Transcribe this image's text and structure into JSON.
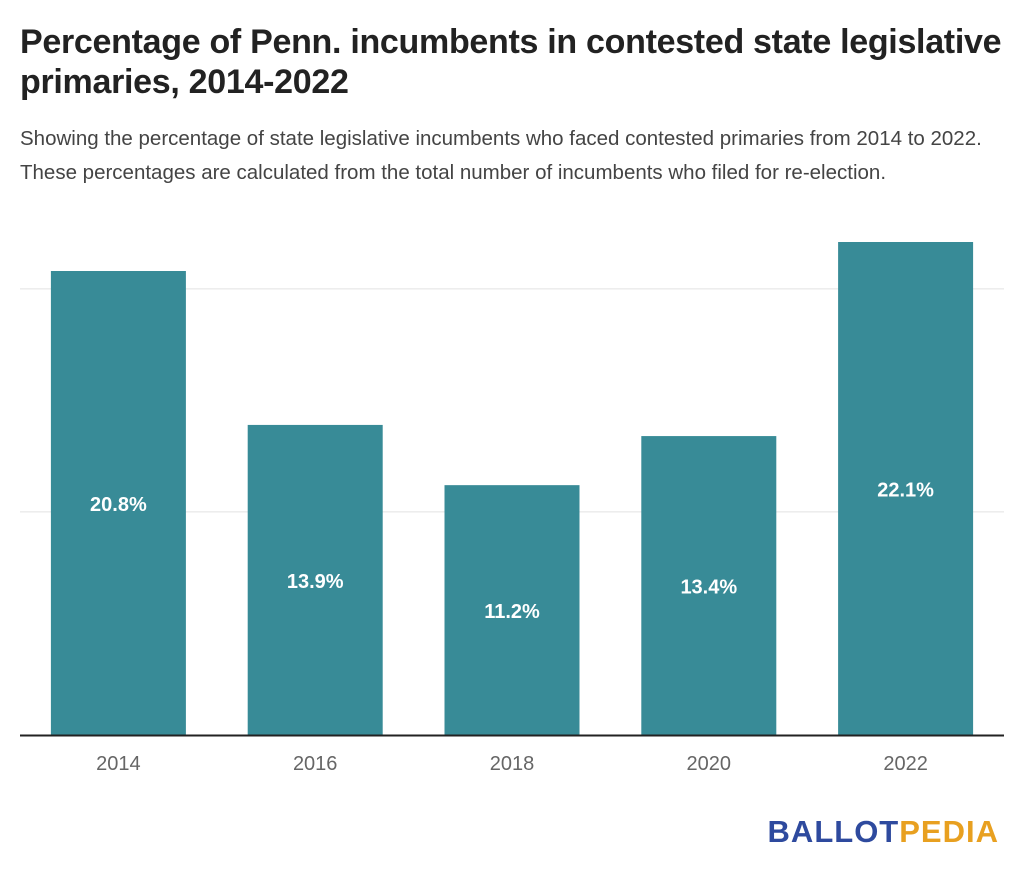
{
  "title": "Percentage of Penn. incumbents in contested state legislative primaries, 2014-2022",
  "subtitle": "Showing the percentage of state legislative incumbents who faced contested primaries from 2014 to 2022. These percentages are calculated from the total number of incumbents who filed for re-election.",
  "brand": {
    "part1": "BALLOT",
    "part2": "PEDIA",
    "color1": "#2e4a9e",
    "color2": "#e8a020"
  },
  "colors": {
    "bar": "#388b97",
    "grid": "#e2e2e2",
    "axis": "#222222",
    "tick_text": "#666666",
    "bar_label_text": "#ffffff"
  },
  "chart_data": {
    "type": "bar",
    "title": "Percentage of Penn. incumbents in contested state legislative primaries, 2014-2022",
    "xlabel": "",
    "ylabel": "",
    "categories": [
      "2014",
      "2016",
      "2018",
      "2020",
      "2022"
    ],
    "values": [
      20.8,
      13.9,
      11.2,
      13.4,
      22.1
    ],
    "value_labels": [
      "20.8%",
      "13.9%",
      "11.2%",
      "13.4%",
      "22.1%"
    ],
    "ylim": [
      0,
      22.1
    ],
    "gridlines": [
      10,
      20
    ],
    "grid": true,
    "legend": "none"
  }
}
